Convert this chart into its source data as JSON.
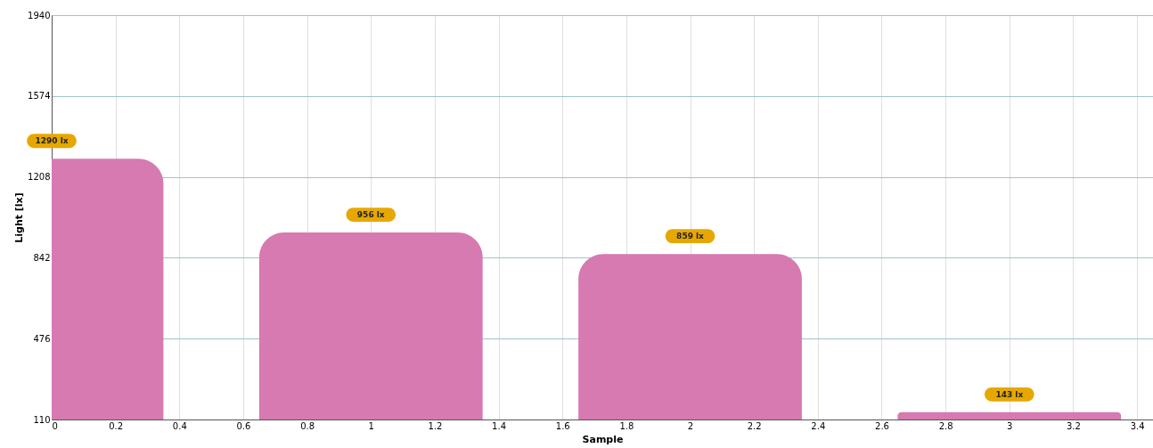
{
  "chart_data": {
    "type": "bar",
    "xlabel": "Sample",
    "ylabel": "Light [lx]",
    "x": [
      0,
      1,
      2,
      3
    ],
    "series": [
      {
        "color": "#d67ab1",
        "values": [
          1290,
          956,
          859,
          143
        ],
        "value_labels": [
          "1290 lx",
          "956 lx",
          "859 lx",
          "143 lx"
        ]
      }
    ],
    "xlim": [
      0,
      3.45
    ],
    "xticks": [
      0,
      0.2,
      0.4,
      0.6,
      0.8,
      1,
      1.2,
      1.4,
      1.6,
      1.8,
      2,
      2.2,
      2.4,
      2.6,
      2.8,
      3,
      3.2,
      3.4
    ],
    "ylim": [
      110,
      1940
    ],
    "yticks": [
      110,
      476,
      842,
      1208,
      1574,
      1940
    ],
    "grid": true
  }
}
